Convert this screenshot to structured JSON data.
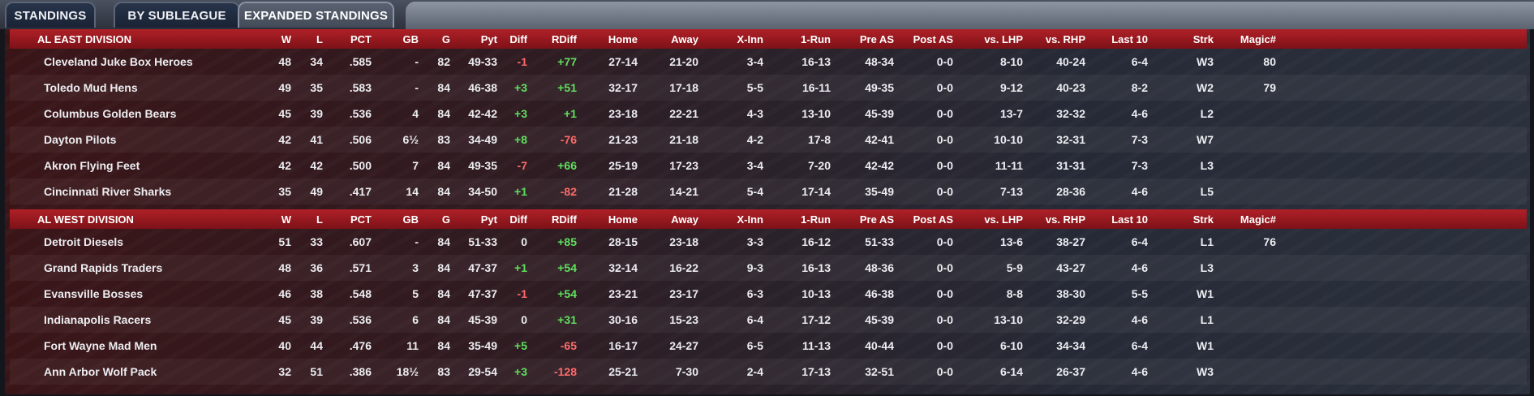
{
  "tabs": [
    {
      "label": "STANDINGS",
      "active": false
    },
    {
      "label": "BY SUBLEAGUE",
      "active": false
    },
    {
      "label": "EXPANDED STANDINGS",
      "active": true
    }
  ],
  "columns": [
    "W",
    "L",
    "PCT",
    "GB",
    "G",
    "Pyt",
    "Diff",
    "RDiff",
    "Home",
    "Away",
    "X-Inn",
    "1-Run",
    "Pre AS",
    "Post AS",
    "vs. LHP",
    "vs. RHP",
    "Last 10",
    "Strk",
    "Magic#"
  ],
  "divisions": [
    {
      "name": "AL EAST DIVISION",
      "teams": [
        {
          "team": "Cleveland Juke Box Heroes",
          "W": "48",
          "L": "34",
          "PCT": ".585",
          "GB": "-",
          "G": "82",
          "Pyt": "49-33",
          "Diff": "-1",
          "RDiff": "+77",
          "Home": "27-14",
          "Away": "21-20",
          "XInn": "3-4",
          "OneRun": "16-13",
          "PreAS": "48-34",
          "PostAS": "0-0",
          "vsLHP": "8-10",
          "vsRHP": "40-24",
          "Last10": "6-4",
          "Strk": "W3",
          "Magic": "80"
        },
        {
          "team": "Toledo  Mud Hens",
          "W": "49",
          "L": "35",
          "PCT": ".583",
          "GB": "-",
          "G": "84",
          "Pyt": "46-38",
          "Diff": "+3",
          "RDiff": "+51",
          "Home": "32-17",
          "Away": "17-18",
          "XInn": "5-5",
          "OneRun": "16-11",
          "PreAS": "49-35",
          "PostAS": "0-0",
          "vsLHP": "9-12",
          "vsRHP": "40-23",
          "Last10": "8-2",
          "Strk": "W2",
          "Magic": "79"
        },
        {
          "team": "Columbus Golden Bears",
          "W": "45",
          "L": "39",
          "PCT": ".536",
          "GB": "4",
          "G": "84",
          "Pyt": "42-42",
          "Diff": "+3",
          "RDiff": "+1",
          "Home": "23-18",
          "Away": "22-21",
          "XInn": "4-3",
          "OneRun": "13-10",
          "PreAS": "45-39",
          "PostAS": "0-0",
          "vsLHP": "13-7",
          "vsRHP": "32-32",
          "Last10": "4-6",
          "Strk": "L2",
          "Magic": ""
        },
        {
          "team": "Dayton Pilots",
          "W": "42",
          "L": "41",
          "PCT": ".506",
          "GB": "6½",
          "G": "83",
          "Pyt": "34-49",
          "Diff": "+8",
          "RDiff": "-76",
          "Home": "21-23",
          "Away": "21-18",
          "XInn": "4-2",
          "OneRun": "17-8",
          "PreAS": "42-41",
          "PostAS": "0-0",
          "vsLHP": "10-10",
          "vsRHP": "32-31",
          "Last10": "7-3",
          "Strk": "W7",
          "Magic": ""
        },
        {
          "team": "Akron  Flying Feet",
          "W": "42",
          "L": "42",
          "PCT": ".500",
          "GB": "7",
          "G": "84",
          "Pyt": "49-35",
          "Diff": "-7",
          "RDiff": "+66",
          "Home": "25-19",
          "Away": "17-23",
          "XInn": "3-4",
          "OneRun": "7-20",
          "PreAS": "42-42",
          "PostAS": "0-0",
          "vsLHP": "11-11",
          "vsRHP": "31-31",
          "Last10": "7-3",
          "Strk": "L3",
          "Magic": ""
        },
        {
          "team": "Cincinnati River Sharks",
          "W": "35",
          "L": "49",
          "PCT": ".417",
          "GB": "14",
          "G": "84",
          "Pyt": "34-50",
          "Diff": "+1",
          "RDiff": "-82",
          "Home": "21-28",
          "Away": "14-21",
          "XInn": "5-4",
          "OneRun": "17-14",
          "PreAS": "35-49",
          "PostAS": "0-0",
          "vsLHP": "7-13",
          "vsRHP": "28-36",
          "Last10": "4-6",
          "Strk": "L5",
          "Magic": ""
        }
      ]
    },
    {
      "name": "AL WEST DIVISION",
      "teams": [
        {
          "team": "Detroit Diesels",
          "W": "51",
          "L": "33",
          "PCT": ".607",
          "GB": "-",
          "G": "84",
          "Pyt": "51-33",
          "Diff": "0",
          "RDiff": "+85",
          "Home": "28-15",
          "Away": "23-18",
          "XInn": "3-3",
          "OneRun": "16-12",
          "PreAS": "51-33",
          "PostAS": "0-0",
          "vsLHP": "13-6",
          "vsRHP": "38-27",
          "Last10": "6-4",
          "Strk": "L1",
          "Magic": "76"
        },
        {
          "team": "Grand Rapids Traders",
          "W": "48",
          "L": "36",
          "PCT": ".571",
          "GB": "3",
          "G": "84",
          "Pyt": "47-37",
          "Diff": "+1",
          "RDiff": "+54",
          "Home": "32-14",
          "Away": "16-22",
          "XInn": "9-3",
          "OneRun": "16-13",
          "PreAS": "48-36",
          "PostAS": "0-0",
          "vsLHP": "5-9",
          "vsRHP": "43-27",
          "Last10": "4-6",
          "Strk": "L3",
          "Magic": ""
        },
        {
          "team": "Evansville Bosses",
          "W": "46",
          "L": "38",
          "PCT": ".548",
          "GB": "5",
          "G": "84",
          "Pyt": "47-37",
          "Diff": "-1",
          "RDiff": "+54",
          "Home": "23-21",
          "Away": "23-17",
          "XInn": "6-3",
          "OneRun": "10-13",
          "PreAS": "46-38",
          "PostAS": "0-0",
          "vsLHP": "8-8",
          "vsRHP": "38-30",
          "Last10": "5-5",
          "Strk": "W1",
          "Magic": ""
        },
        {
          "team": "Indianapolis Racers",
          "W": "45",
          "L": "39",
          "PCT": ".536",
          "GB": "6",
          "G": "84",
          "Pyt": "45-39",
          "Diff": "0",
          "RDiff": "+31",
          "Home": "30-16",
          "Away": "15-23",
          "XInn": "6-4",
          "OneRun": "17-12",
          "PreAS": "45-39",
          "PostAS": "0-0",
          "vsLHP": "13-10",
          "vsRHP": "32-29",
          "Last10": "4-6",
          "Strk": "L1",
          "Magic": ""
        },
        {
          "team": "Fort Wayne Mad Men",
          "W": "40",
          "L": "44",
          "PCT": ".476",
          "GB": "11",
          "G": "84",
          "Pyt": "35-49",
          "Diff": "+5",
          "RDiff": "-65",
          "Home": "16-17",
          "Away": "24-27",
          "XInn": "6-5",
          "OneRun": "11-13",
          "PreAS": "40-44",
          "PostAS": "0-0",
          "vsLHP": "6-10",
          "vsRHP": "34-34",
          "Last10": "6-4",
          "Strk": "W1",
          "Magic": ""
        },
        {
          "team": "Ann Arbor Wolf Pack",
          "W": "32",
          "L": "51",
          "PCT": ".386",
          "GB": "18½",
          "G": "83",
          "Pyt": "29-54",
          "Diff": "+3",
          "RDiff": "-128",
          "Home": "25-21",
          "Away": "7-30",
          "XInn": "2-4",
          "OneRun": "17-13",
          "PreAS": "32-51",
          "PostAS": "0-0",
          "vsLHP": "6-14",
          "vsRHP": "26-37",
          "Last10": "4-6",
          "Strk": "W3",
          "Magic": ""
        }
      ]
    }
  ],
  "colors": {
    "header_red": "#b02027",
    "positive": "#5fe05f",
    "negative": "#ff6b6b"
  }
}
